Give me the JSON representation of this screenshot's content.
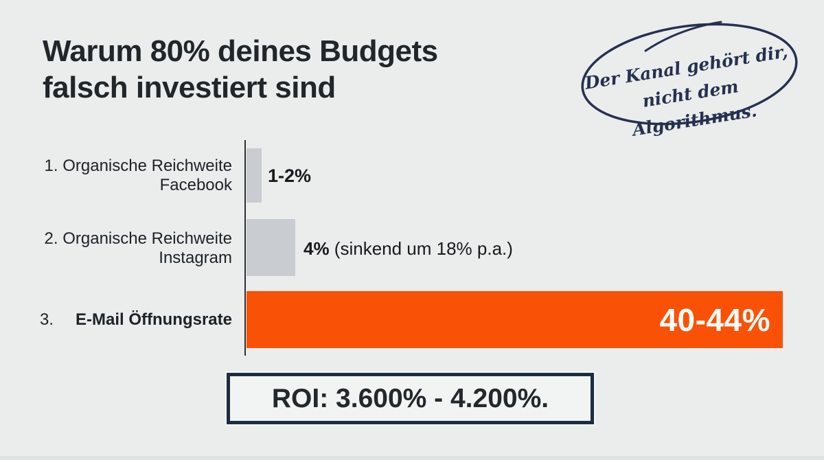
{
  "slide": {
    "background_color": "#eaedec",
    "title": {
      "line1": "Warum 80% deines Budgets",
      "line2": "falsch investiert sind"
    }
  },
  "annotation_badge": {
    "line1": "Der Kanal gehört dir,",
    "line2": "nicht dem Algorithmus.",
    "ink_color": "#26304f"
  },
  "chart_data": {
    "type": "bar",
    "orientation": "horizontal",
    "title": "",
    "xlabel": "",
    "ylabel": "",
    "axis": {
      "baseline_value": 0,
      "max_value_pct": 44,
      "gridlines": false,
      "tick_labels": []
    },
    "categories": [
      "Organische Reichweite Facebook",
      "Organische Reichweite Instagram",
      "E-Mail Öffnungsrate"
    ],
    "rows": [
      {
        "index": "1.",
        "label_line1": "1. Organische Reichweite",
        "label_line2": "Facebook",
        "value_label": "1-2%",
        "value_min_pct": 1,
        "value_max_pct": 2,
        "bar_fraction": 0.028,
        "bar_color": "#c9ccd0"
      },
      {
        "index": "2.",
        "label_line1": "2. Organische Reichweite",
        "label_line2": "Instagram",
        "value_label": "4%",
        "value_note": " (sinkend um 18% p.a.)",
        "value_pct": 4,
        "trend_note": "sinkend um 18% p.a.",
        "bar_fraction": 0.091,
        "bar_color": "#c9ccd0"
      },
      {
        "index": "3.",
        "label": "E-Mail Öffnungsrate",
        "value_label": "40-44%",
        "value_min_pct": 40,
        "value_max_pct": 44,
        "bar_fraction": 1.0,
        "bar_color": "#f95207",
        "value_label_color": "#ffffff"
      }
    ]
  },
  "roi_box": {
    "text": "ROI: 3.600% - 4.200%.",
    "border_color": "#1e2c41"
  }
}
